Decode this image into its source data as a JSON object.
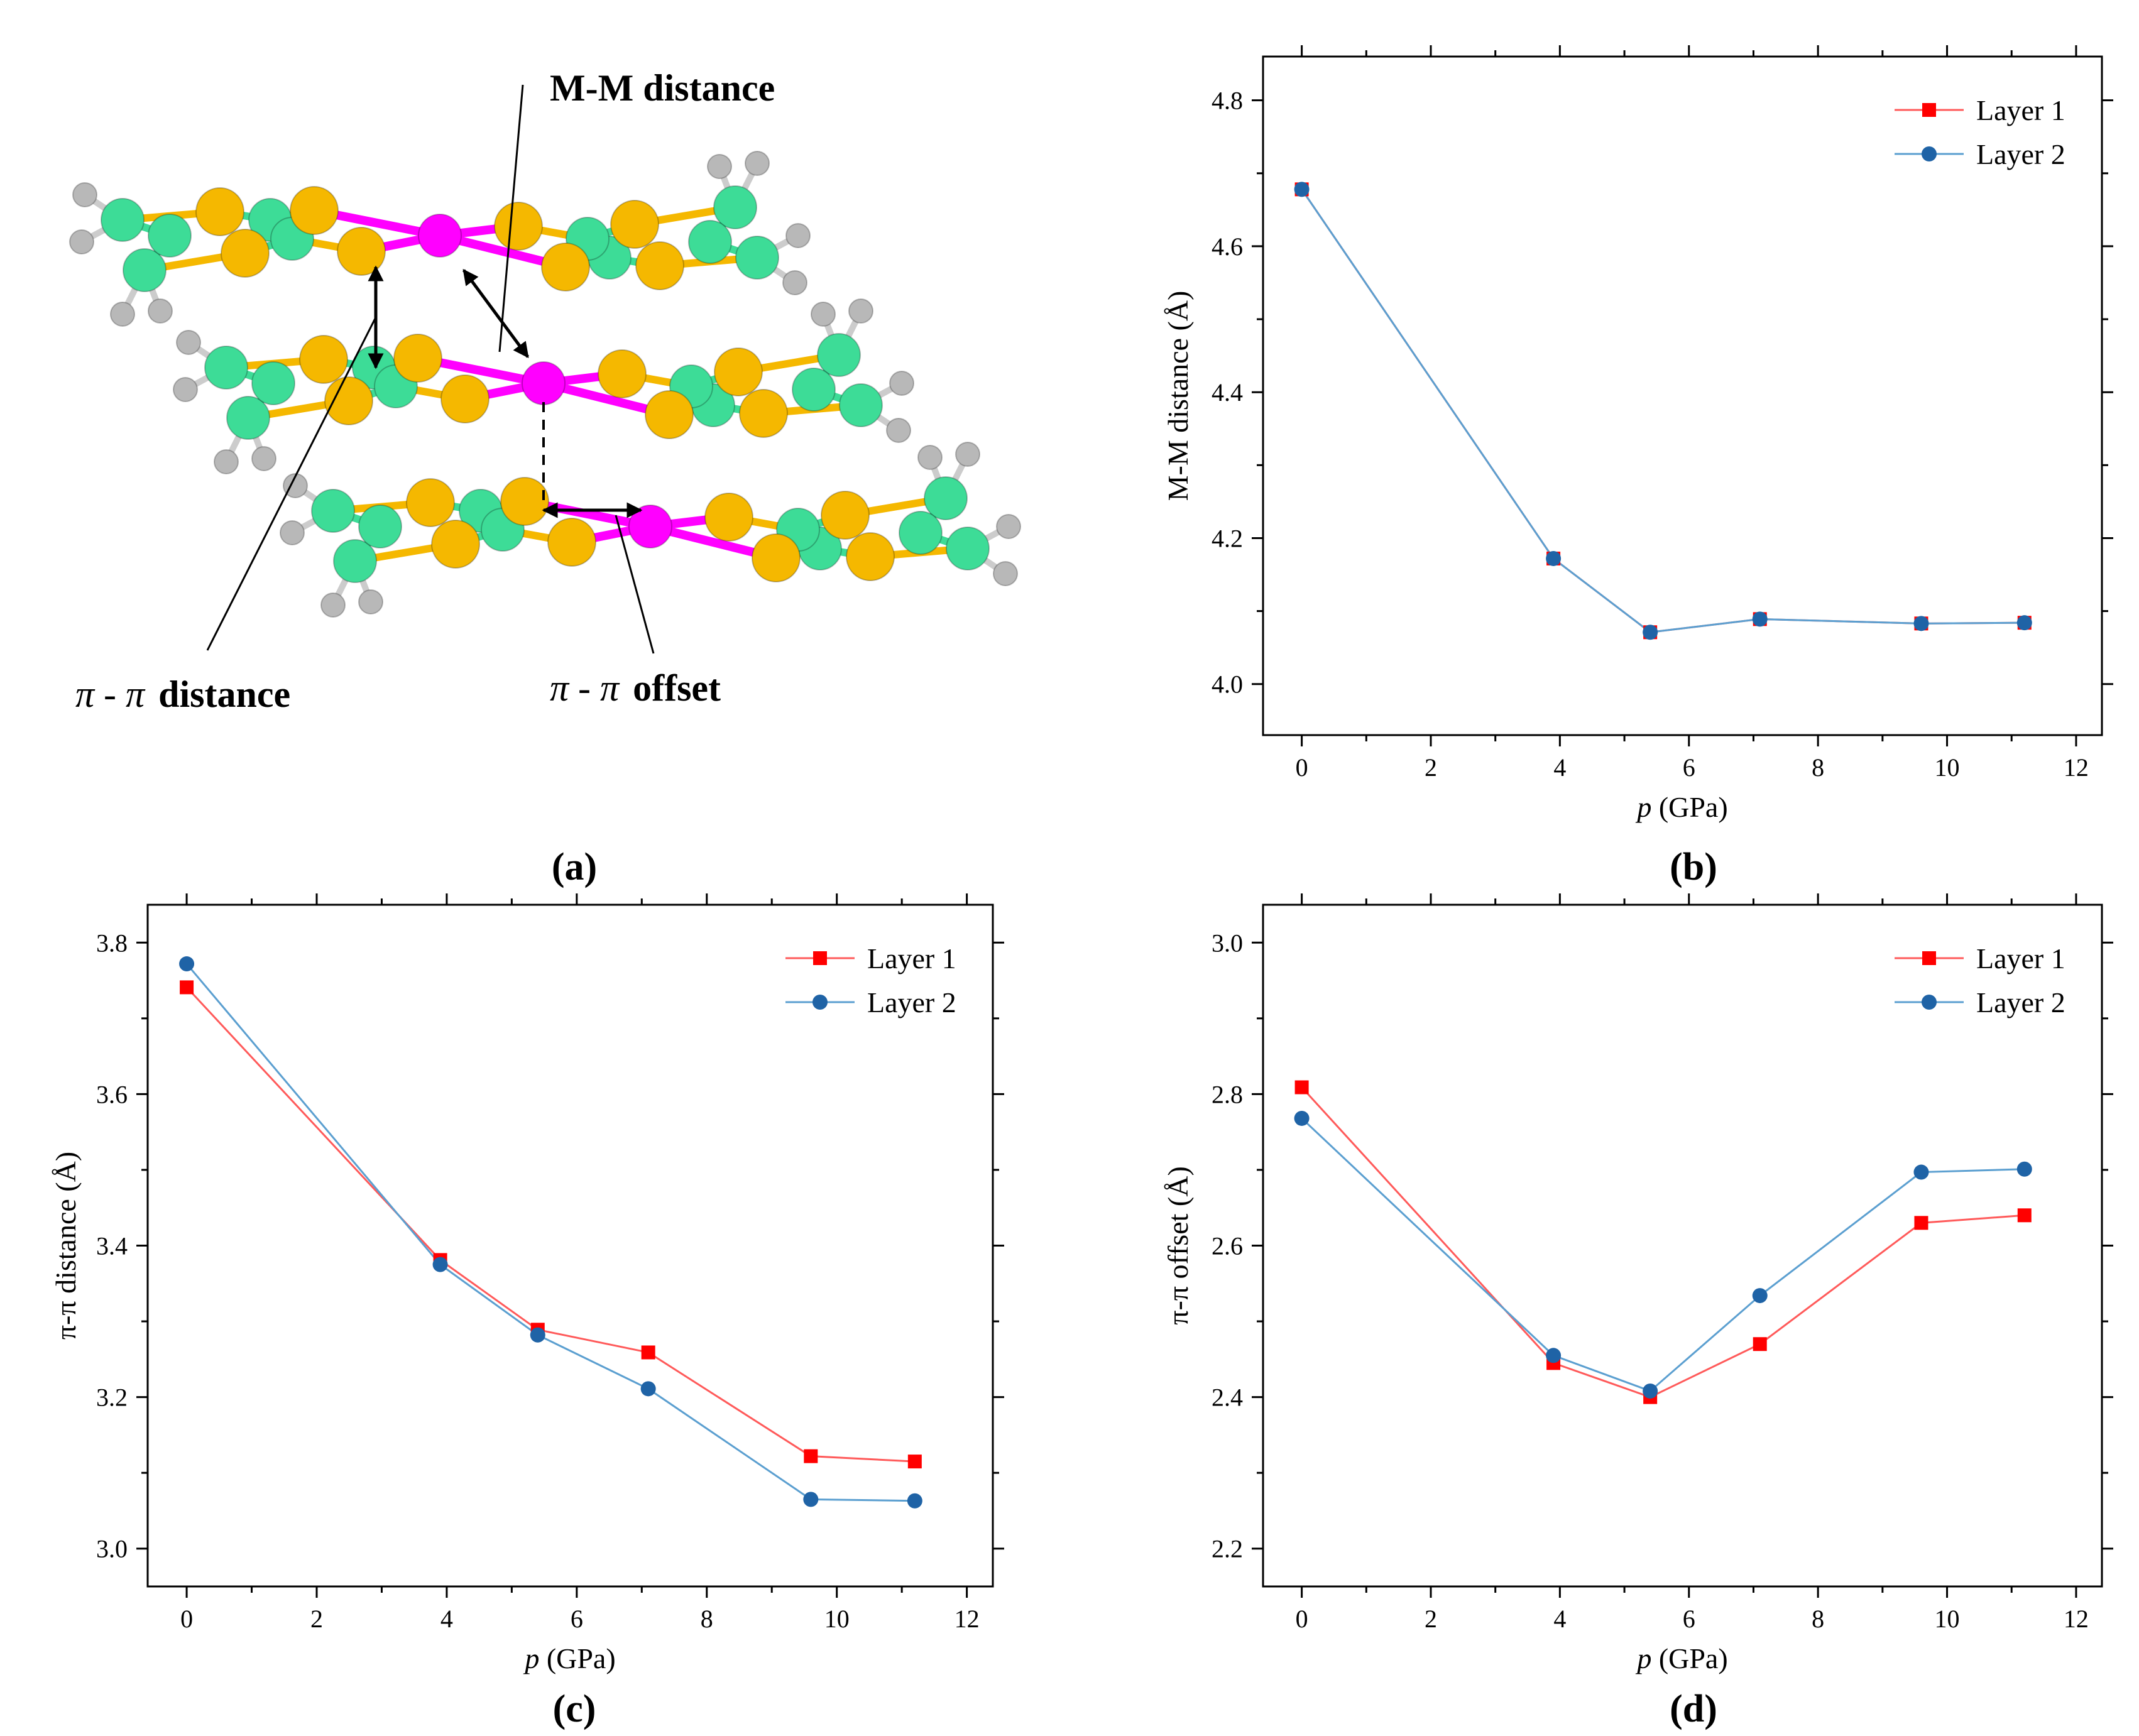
{
  "panel_labels": {
    "a": "(a)",
    "b": "(b)",
    "c": "(c)",
    "d": "(d)"
  },
  "molecule_annotations": {
    "mm_distance": "M-M distance",
    "pi_pi_distance": {
      "symbol": "π - π",
      "text": "distance"
    },
    "pi_pi_offset": {
      "symbol": "π - π",
      "text": "offset"
    }
  },
  "colors": {
    "layer1": "#ff0000",
    "layer1_line": "#ff5a5a",
    "layer2": "#1f63a6",
    "layer2_line": "#5b9fd0",
    "carbon": "#3ddc97",
    "sulfur": "#f5b800",
    "metal": "#ff00ff",
    "hydrogen": "#b8b8b8"
  },
  "chart_data": [
    {
      "id": "b",
      "type": "line",
      "title": "",
      "xlabel_italic": "p",
      "xlabel_rest": " (GPa)",
      "ylabel": "M-M distance (Å)",
      "xlim": [
        -0.6,
        12.4
      ],
      "ylim": [
        3.93,
        4.86
      ],
      "xticks": [
        0,
        2,
        4,
        6,
        8,
        10,
        12
      ],
      "yticks": [
        4.0,
        4.2,
        4.4,
        4.6,
        4.8
      ],
      "ytick_labels": [
        "4.0",
        "4.2",
        "4.4",
        "4.6",
        "4.8"
      ],
      "legend_position": "top-right",
      "series": [
        {
          "name": "Layer 1",
          "x": [
            0,
            3.9,
            5.4,
            7.1,
            9.6,
            11.2
          ],
          "y": [
            4.678,
            4.172,
            4.071,
            4.089,
            4.083,
            4.084
          ]
        },
        {
          "name": "Layer 2",
          "x": [
            0,
            3.9,
            5.4,
            7.1,
            9.6,
            11.2
          ],
          "y": [
            4.678,
            4.172,
            4.071,
            4.089,
            4.083,
            4.084
          ]
        }
      ]
    },
    {
      "id": "c",
      "type": "line",
      "title": "",
      "xlabel_italic": "p",
      "xlabel_rest": " (GPa)",
      "ylabel": "π-π distance (Å)",
      "xlim": [
        -0.6,
        12.4
      ],
      "ylim": [
        2.95,
        3.85
      ],
      "xticks": [
        0,
        2,
        4,
        6,
        8,
        10,
        12
      ],
      "yticks": [
        3.0,
        3.2,
        3.4,
        3.6,
        3.8
      ],
      "ytick_labels": [
        "3.0",
        "3.2",
        "3.4",
        "3.6",
        "3.8"
      ],
      "legend_position": "top-right",
      "series": [
        {
          "name": "Layer 1",
          "x": [
            0,
            3.9,
            5.4,
            7.1,
            9.6,
            11.2
          ],
          "y": [
            3.741,
            3.381,
            3.289,
            3.259,
            3.122,
            3.115
          ]
        },
        {
          "name": "Layer 2",
          "x": [
            0,
            3.9,
            5.4,
            7.1,
            9.6,
            11.2
          ],
          "y": [
            3.772,
            3.375,
            3.282,
            3.211,
            3.065,
            3.063
          ]
        }
      ]
    },
    {
      "id": "d",
      "type": "line",
      "title": "",
      "xlabel_italic": "p",
      "xlabel_rest": " (GPa)",
      "ylabel": "π-π offset (Å)",
      "xlim": [
        -0.6,
        12.4
      ],
      "ylim": [
        2.15,
        3.05
      ],
      "xticks": [
        0,
        2,
        4,
        6,
        8,
        10,
        12
      ],
      "yticks": [
        2.2,
        2.4,
        2.6,
        2.8,
        3.0
      ],
      "ytick_labels": [
        "2.2",
        "2.4",
        "2.6",
        "2.8",
        "3.0"
      ],
      "legend_position": "top-right",
      "series": [
        {
          "name": "Layer 1",
          "x": [
            0,
            3.9,
            5.4,
            7.1,
            9.6,
            11.2
          ],
          "y": [
            2.809,
            2.445,
            2.4,
            2.47,
            2.63,
            2.64
          ]
        },
        {
          "name": "Layer 2",
          "x": [
            0,
            3.9,
            5.4,
            7.1,
            9.6,
            11.2
          ],
          "y": [
            2.768,
            2.455,
            2.408,
            2.534,
            2.697,
            2.701
          ]
        }
      ]
    }
  ]
}
